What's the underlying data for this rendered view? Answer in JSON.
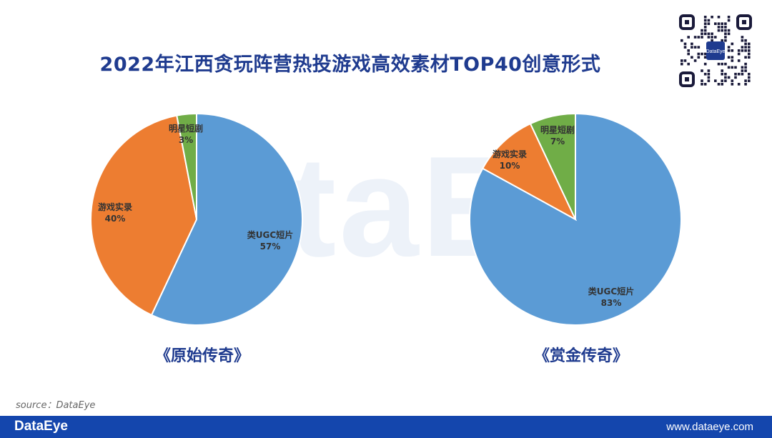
{
  "title": "2022年江西贪玩阵营热投游戏高效素材TOP40创意形式",
  "watermark": "DataEye",
  "source": "source：DataEye",
  "footer": {
    "brand": "DataEye",
    "url": "www.dataeye.com"
  },
  "qr_badge": "DataEye",
  "colors": {
    "blue": "#5b9bd5",
    "orange": "#ed7d31",
    "green": "#70ad47",
    "title": "#1f3b8f",
    "footer": "#1446ad"
  },
  "chart_data": [
    {
      "type": "pie",
      "title": "《原始传奇》",
      "slices": [
        {
          "label": "类UGC短片",
          "value": 57,
          "display": "57%",
          "color": "#5b9bd5"
        },
        {
          "label": "游戏实录",
          "value": 40,
          "display": "40%",
          "color": "#ed7d31"
        },
        {
          "label": "明星短剧",
          "value": 3,
          "display": "3%",
          "color": "#70ad47"
        }
      ]
    },
    {
      "type": "pie",
      "title": "《赏金传奇》",
      "slices": [
        {
          "label": "类UGC短片",
          "value": 83,
          "display": "83%",
          "color": "#5b9bd5"
        },
        {
          "label": "游戏实录",
          "value": 10,
          "display": "10%",
          "color": "#ed7d31"
        },
        {
          "label": "明星短剧",
          "value": 7,
          "display": "7%",
          "color": "#70ad47"
        }
      ]
    }
  ]
}
